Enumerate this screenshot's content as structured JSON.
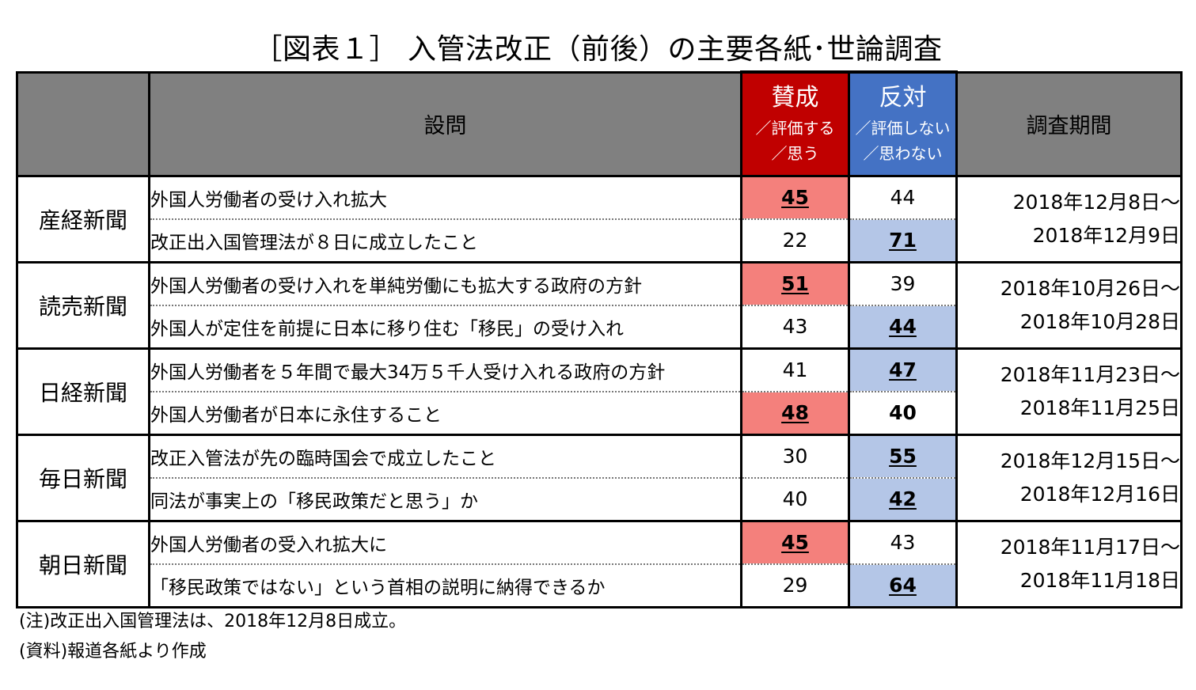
{
  "title": "［図表１］ 入管法改正（前後）の主要各紙･世論調査",
  "header": {
    "question": "設問",
    "yes_main": "賛成",
    "yes_sub1": "／評価する",
    "yes_sub2": "／思う",
    "no_main": "反対",
    "no_sub1": "／評価しない",
    "no_sub2": "／思わない",
    "period": "調査期間"
  },
  "colors": {
    "header_gray": "#808080",
    "yes_header": "#c00000",
    "no_header": "#4472c4",
    "yes_highlight": "#f4807c",
    "no_highlight": "#b4c6e7"
  },
  "chart_data": {
    "type": "table",
    "columns": [
      "設問",
      "賛成／評価する／思う",
      "反対／評価しない／思わない",
      "調査期間"
    ],
    "groups": [
      {
        "paper": "産経新聞",
        "period_start": "2018年12月8日～",
        "period_end": "2018年12月9日",
        "rows": [
          {
            "question": "外国人労働者の受け入れ拡大",
            "yes": "45",
            "no": "44",
            "highlight": "yes"
          },
          {
            "question": "改正出入国管理法が８日に成立したこと",
            "yes": "22",
            "no": "71",
            "highlight": "no"
          }
        ]
      },
      {
        "paper": "読売新聞",
        "period_start": "2018年10月26日～",
        "period_end": "2018年10月28日",
        "rows": [
          {
            "question": "外国人労働者の受け入れを単純労働にも拡大する政府の方針",
            "yes": "51",
            "no": "39",
            "highlight": "yes"
          },
          {
            "question": "外国人が定住を前提に日本に移り住む「移民」の受け入れ",
            "yes": "43",
            "no": "44",
            "highlight": "no"
          }
        ]
      },
      {
        "paper": "日経新聞",
        "period_start": "2018年11月23日～",
        "period_end": "2018年11月25日",
        "rows": [
          {
            "question": "外国人労働者を５年間で最大34万５千人受け入れる政府の方針",
            "yes": "41",
            "no": "47",
            "highlight": "no"
          },
          {
            "question": "外国人労働者が日本に永住すること",
            "yes": "48",
            "no": "40",
            "highlight": "yes",
            "bold_no": true
          }
        ]
      },
      {
        "paper": "毎日新聞",
        "period_start": "2018年12月15日～",
        "period_end": "2018年12月16日",
        "rows": [
          {
            "question": "改正入管法が先の臨時国会で成立したこと",
            "yes": "30",
            "no": "55",
            "highlight": "no"
          },
          {
            "question": "同法が事実上の「移民政策だと思う」か",
            "yes": "40",
            "no": "42",
            "highlight": "no"
          }
        ]
      },
      {
        "paper": "朝日新聞",
        "period_start": "2018年11月17日～",
        "period_end": "2018年11月18日",
        "rows": [
          {
            "question": "外国人労働者の受入れ拡大に",
            "yes": "45",
            "no": "43",
            "highlight": "yes"
          },
          {
            "question": "「移民政策ではない」という首相の説明に納得できるか",
            "yes": "29",
            "no": "64",
            "highlight": "no"
          }
        ]
      }
    ]
  },
  "notes": [
    "(注)改正出入国管理法は、2018年12月8日成立。",
    "(資料)報道各紙より作成"
  ]
}
